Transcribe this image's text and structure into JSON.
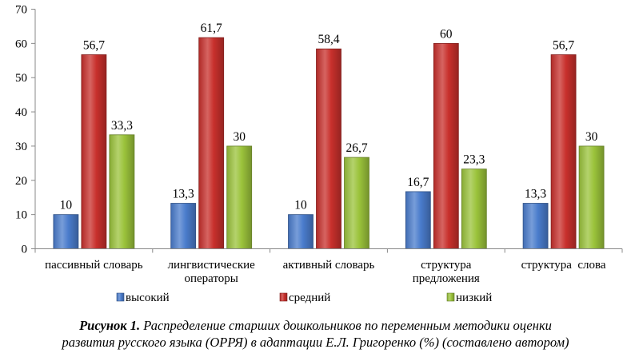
{
  "chart_data": {
    "type": "bar",
    "categories": [
      [
        "пассивный словарь"
      ],
      [
        "лингвистические",
        "операторы"
      ],
      [
        "активный словарь"
      ],
      [
        "структура",
        "предложения"
      ],
      [
        "структура  слова"
      ]
    ],
    "series": [
      {
        "name": "высокий",
        "values": [
          10,
          13.3,
          10,
          16.7,
          13.3
        ],
        "labels": [
          "10",
          "13,3",
          "10",
          "16,7",
          "13,3"
        ],
        "color": "#4a7ccc"
      },
      {
        "name": "средний",
        "values": [
          56.7,
          61.7,
          58.4,
          60,
          56.7
        ],
        "labels": [
          "56,7",
          "61,7",
          "58,4",
          "60",
          "56,7"
        ],
        "color": "#c8302c"
      },
      {
        "name": "низкий",
        "values": [
          33.3,
          30,
          26.7,
          23.3,
          30
        ],
        "labels": [
          "33,3",
          "30",
          "26,7",
          "23,3",
          "30"
        ],
        "color": "#9bc33b"
      }
    ],
    "ylim": [
      0,
      70
    ],
    "yticks": [
      0,
      10,
      20,
      30,
      40,
      50,
      60,
      70
    ],
    "grid": false,
    "legend": "bottom"
  },
  "caption": {
    "label": "Рисунок 1.",
    "line1": "Распределение старших дошкольников по переменным методики оценки",
    "line2": "развития русского языка (ОРРЯ) в адаптации Е.Л. Григоренко (%) (составлено автором)"
  }
}
